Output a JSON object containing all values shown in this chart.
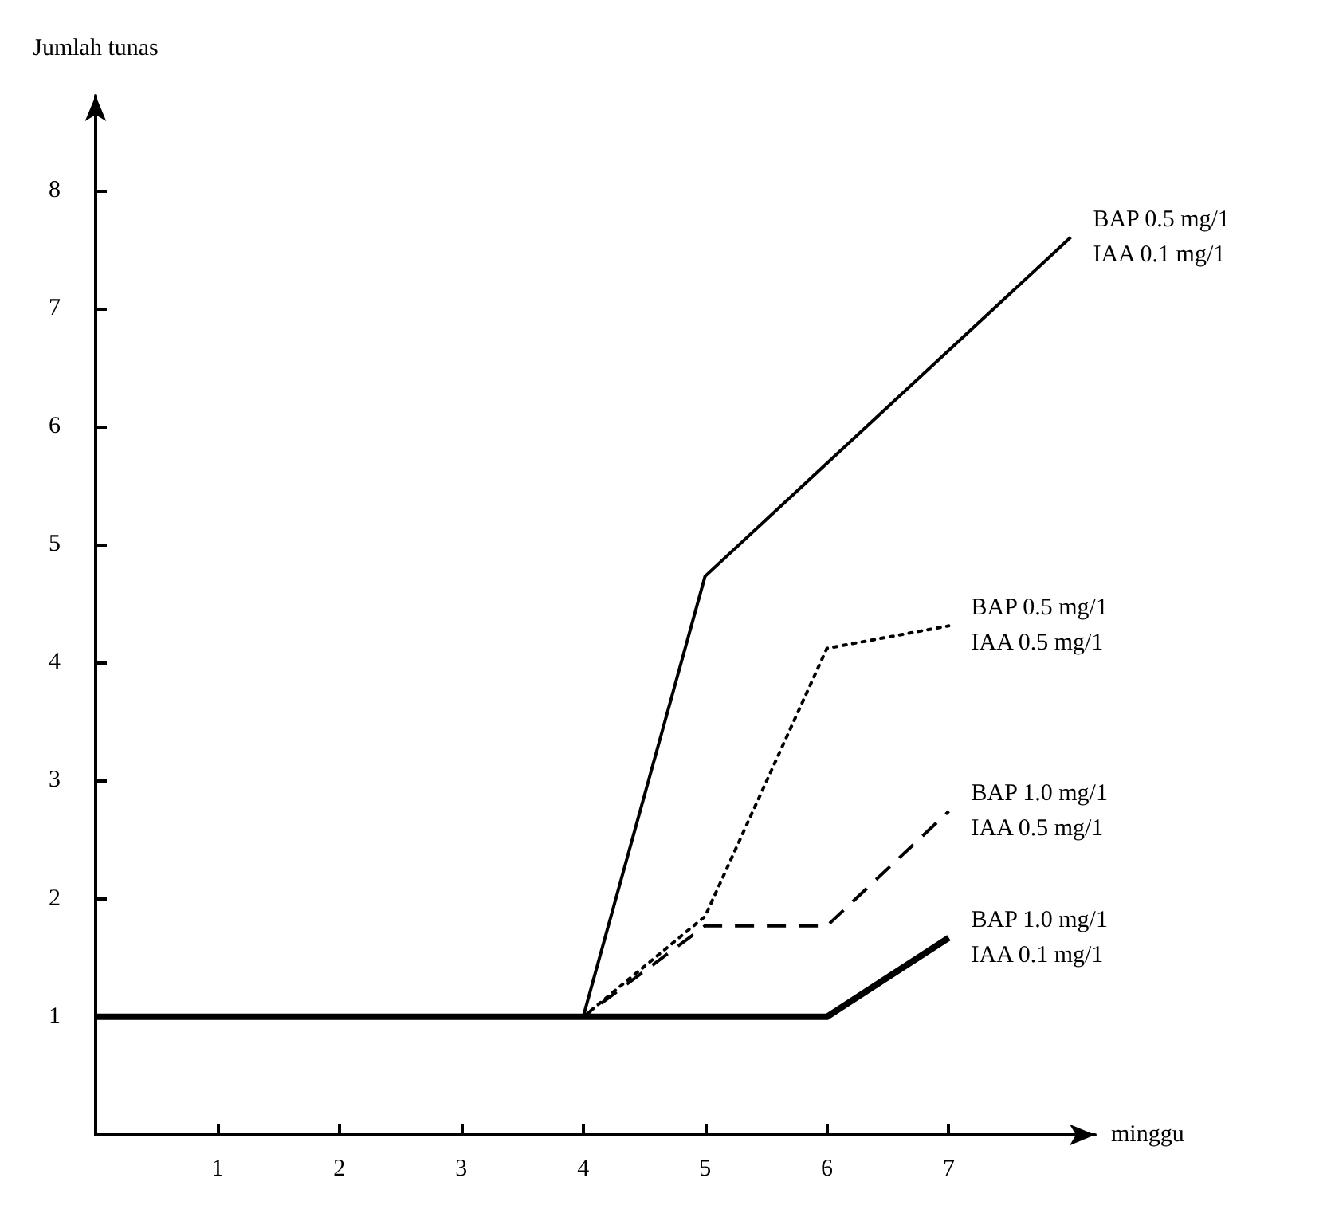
{
  "chart_data": {
    "type": "line",
    "xlabel": "minggu",
    "ylabel": "Jumlah tunas",
    "xlim": [
      0,
      8.2
    ],
    "xticks": [
      1,
      2,
      3,
      4,
      5,
      6,
      7
    ],
    "ylim": [
      0,
      8.8
    ],
    "yticks": [
      1,
      2,
      3,
      4,
      5,
      6,
      7,
      8
    ],
    "grid": false,
    "legend": false,
    "marker": "none",
    "series": [
      {
        "name": "BAP 0.5 mg/1\nIAA 0.1 mg/1",
        "color": "#000000",
        "line_style": "solid",
        "x": [
          0,
          4,
          5,
          8
        ],
        "values": [
          1,
          1,
          4.73,
          7.6
        ]
      },
      {
        "name": "BAP 0.5 mg/1\nIAA 0.5 mg/1",
        "color": "#000000",
        "line_style": "dotted",
        "x": [
          0,
          4,
          5,
          6,
          7
        ],
        "values": [
          1,
          1,
          1.85,
          4.12,
          4.31
        ]
      },
      {
        "name": "BAP 1.0 mg/1\nIAA 0.5 mg/1",
        "color": "#000000",
        "line_style": "dashed",
        "x": [
          0,
          4,
          5,
          6,
          7
        ],
        "values": [
          1,
          1,
          1.77,
          1.77,
          2.74
        ]
      },
      {
        "name": "BAP 1.0 mg/1\nIAA 0.1 mg/1",
        "color": "#000000",
        "line_style": "solid",
        "x": [
          0,
          4,
          6,
          7
        ],
        "values": [
          1,
          1,
          1,
          1.67
        ]
      }
    ]
  }
}
